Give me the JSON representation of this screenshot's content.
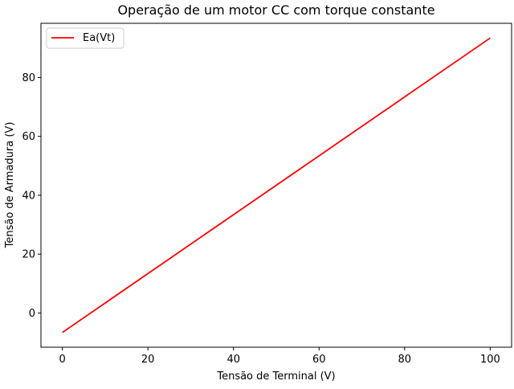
{
  "chart_data": {
    "type": "line",
    "title": "Operação de um motor CC com torque constante",
    "xlabel": "Tensão de Terminal (V)",
    "ylabel": "Tensão de Armadura (V)",
    "xlim": [
      -5,
      105
    ],
    "ylim": [
      -11.6,
      98.4
    ],
    "xticks": [
      0,
      20,
      40,
      60,
      80,
      100
    ],
    "yticks": [
      0,
      20,
      40,
      60,
      80
    ],
    "grid": false,
    "legend_position": "upper-left",
    "series": [
      {
        "name": "Ea(Vt)",
        "color": "#ff0000",
        "x": [
          0,
          100
        ],
        "y": [
          -6.6,
          93.4
        ]
      }
    ]
  }
}
